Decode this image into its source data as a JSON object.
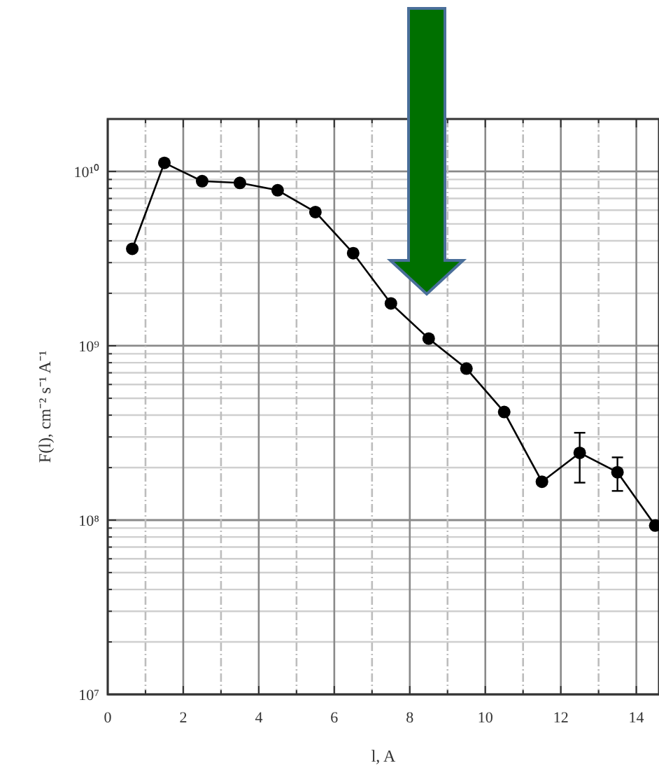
{
  "chart_data": {
    "type": "line",
    "xlabel": "l, A",
    "ylabel": "F(l), cm⁻² s⁻¹ A⁻¹",
    "log": "y",
    "grid": true,
    "marker": "circle",
    "line_style": "solid",
    "xlim": [
      0,
      14.6
    ],
    "xticks": [
      0,
      {
        "value": 1,
        "label": null
      },
      2,
      {
        "value": 3,
        "label": null
      },
      4,
      {
        "value": 5,
        "label": null
      },
      6,
      {
        "value": 7,
        "label": null
      },
      8,
      {
        "value": 9,
        "label": null
      },
      10,
      {
        "value": 11,
        "label": null
      },
      12,
      {
        "value": 13,
        "label": null
      },
      14
    ],
    "ylim": [
      10000000,
      20000000000
    ],
    "yticks": [
      {
        "value": 10000000,
        "label": "10⁷"
      },
      {
        "value": 20000000,
        "label": null
      },
      {
        "value": 30000000,
        "label": null
      },
      {
        "value": 40000000,
        "label": null
      },
      {
        "value": 50000000,
        "label": null
      },
      {
        "value": 60000000,
        "label": null
      },
      {
        "value": 70000000,
        "label": null
      },
      {
        "value": 80000000,
        "label": null
      },
      {
        "value": 90000000,
        "label": null
      },
      {
        "value": 100000000,
        "label": "10⁸"
      },
      {
        "value": 200000000,
        "label": null
      },
      {
        "value": 300000000,
        "label": null
      },
      {
        "value": 400000000,
        "label": null
      },
      {
        "value": 500000000,
        "label": null
      },
      {
        "value": 600000000,
        "label": null
      },
      {
        "value": 700000000,
        "label": null
      },
      {
        "value": 800000000,
        "label": null
      },
      {
        "value": 900000000,
        "label": null
      },
      {
        "value": 1000000000,
        "label": "10⁹"
      },
      {
        "value": 2000000000,
        "label": null
      },
      {
        "value": 3000000000,
        "label": null
      },
      {
        "value": 4000000000,
        "label": null
      },
      {
        "value": 5000000000,
        "label": null
      },
      {
        "value": 6000000000,
        "label": null
      },
      {
        "value": 7000000000,
        "label": null
      },
      {
        "value": 8000000000,
        "label": null
      },
      {
        "value": 9000000000,
        "label": null
      },
      {
        "value": 10000000000,
        "label": "10¹⁰"
      }
    ],
    "x": [
      0.65,
      1.5,
      2.5,
      3.5,
      4.5,
      5.5,
      6.5,
      7.5,
      8.5,
      9.5,
      10.5,
      11.5,
      12.5,
      13.5,
      14.5
    ],
    "series": [
      {
        "color": "#000000",
        "values": [
          3600000000,
          11200000000,
          8800000000,
          8600000000,
          7800000000,
          5850000000,
          3400000000,
          1750000000,
          1100000000,
          740000000,
          417000000,
          166000000,
          243000000,
          188000000,
          93000000
        ],
        "errors": [
          null,
          null,
          null,
          null,
          null,
          null,
          null,
          null,
          null,
          null,
          null,
          null,
          [
            164000000,
            317000000
          ],
          [
            147000000,
            229000000
          ],
          null
        ]
      }
    ]
  }
}
